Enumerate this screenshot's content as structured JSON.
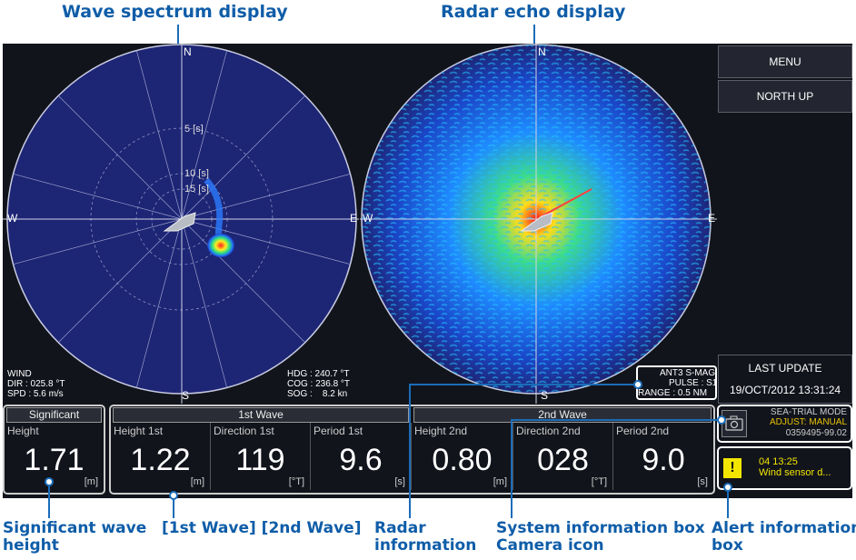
{
  "callouts": {
    "wave_spectrum": "Wave spectrum display",
    "radar_echo": "Radar echo display",
    "significant": "Significant wave\nheight",
    "waves": "[1st Wave] [2nd Wave]",
    "radar_info": "Radar\ninformation",
    "system_info": "System information box\nCamera icon",
    "alert_info": "Alert information\nbox"
  },
  "wave_display": {
    "dir_n": "N",
    "dir_s": "S",
    "dir_w": "W",
    "dir_e": "E",
    "ring_5": "5 [s]",
    "ring_10": "10 [s]",
    "ring_15": "15 [s]",
    "wind_label": "WIND",
    "wind_dir": "DIR : 025.8 °T",
    "wind_spd": "SPD : 5.6 m/s",
    "hdg": "HDG : 240.7 °T",
    "cog": "COG : 236.8 °T",
    "sog": "SOG :    8.2 kn"
  },
  "radar_display": {
    "dir_n": "N",
    "dir_s": "S",
    "dir_w": "W",
    "dir_e": "E",
    "antenna": "ANT3 S-MAG",
    "pulse": "PULSE : S1",
    "range": "RANGE : 0.5 NM"
  },
  "menu": {
    "menu_label": "MENU",
    "orientation_label": "NORTH UP",
    "last_update_label": "LAST UPDATE",
    "last_update_value": "19/OCT/2012 13:31:24"
  },
  "significant": {
    "header": "Significant",
    "label": "Height",
    "value": "1.71",
    "unit": "[m]"
  },
  "waves": {
    "first_header": "1st Wave",
    "second_header": "2nd Wave",
    "cells": [
      {
        "label": "Height 1st",
        "value": "1.22",
        "unit": "[m]"
      },
      {
        "label": "Direction 1st",
        "value": "119",
        "unit": "[°T]"
      },
      {
        "label": "Period 1st",
        "value": "9.6",
        "unit": "[s]"
      },
      {
        "label": "Height 2nd",
        "value": "0.80",
        "unit": "[m]"
      },
      {
        "label": "Direction 2nd",
        "value": "028",
        "unit": "[°T]"
      },
      {
        "label": "Period 2nd",
        "value": "9.0",
        "unit": "[s]"
      }
    ]
  },
  "system_info": {
    "mode": "SEA-TRIAL MODE",
    "adjust": "ADJUST: MANUAL",
    "serial": "0359495-99.02",
    "camera_icon": "camera-icon"
  },
  "alert": {
    "time": "04 13:25",
    "message": "Wind sensor d...",
    "icon": "warning-icon",
    "icon_glyph": "!"
  },
  "colors": {
    "callout": "#0f5da8",
    "scope_bg": "#1d2575",
    "screen_bg": "#12141c",
    "adjust_text": "#e6c200",
    "alert_badge": "#f2e600"
  }
}
